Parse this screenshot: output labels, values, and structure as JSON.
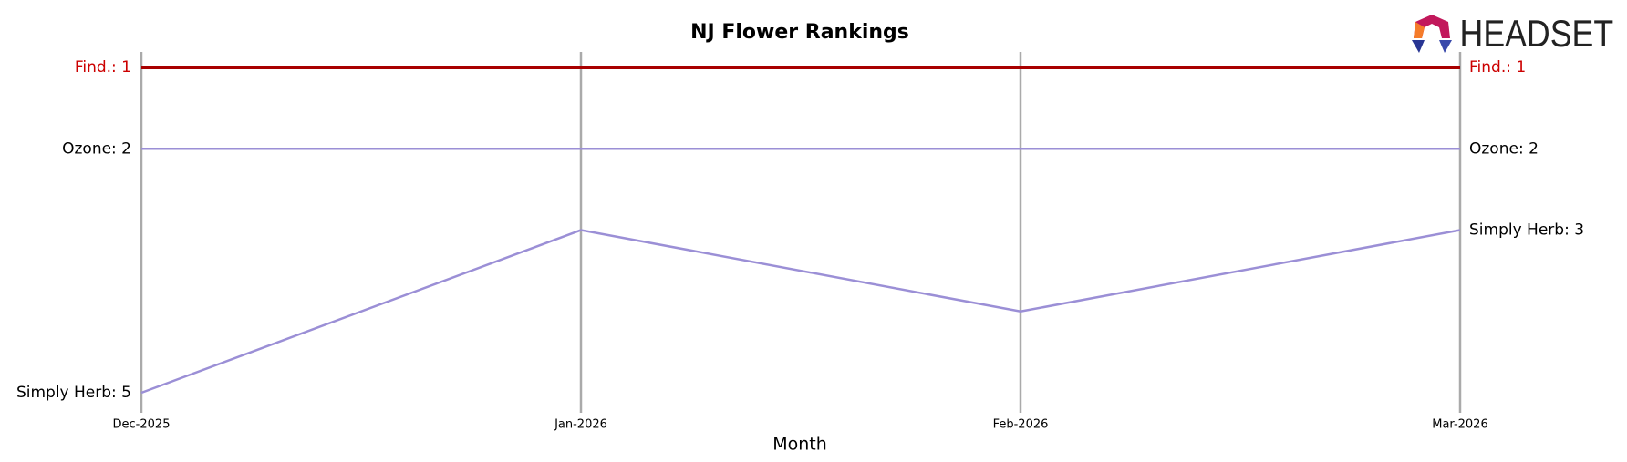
{
  "chart_data": {
    "type": "line",
    "title": "NJ Flower Rankings",
    "logo": "HEADSET",
    "x_label": "Month",
    "categories": [
      "Dec-2025",
      "Jan-2026",
      "Feb-2026",
      "Mar-2026"
    ],
    "ylim": [
      1,
      5
    ],
    "y_inverted": true,
    "series": [
      {
        "name": "Find.",
        "color": "#a80000",
        "label_color": "#cc0000",
        "values": [
          1,
          1,
          1,
          1
        ],
        "value_labels": [
          "Find.: 1",
          null,
          null,
          "Find.: 1"
        ]
      },
      {
        "name": "Ozone",
        "color": "#9b8fd6",
        "label_color": "#000000",
        "values": [
          2,
          2,
          2,
          2
        ],
        "value_labels": [
          "Ozone: 2",
          null,
          null,
          "Ozone: 2"
        ]
      },
      {
        "name": "Simply Herb",
        "color": "#9b8fd6",
        "label_color": "#000000",
        "values": [
          5,
          3,
          4,
          3
        ],
        "value_labels": [
          "Simply Herb: 5",
          null,
          null,
          "Simply Herb: 3"
        ]
      }
    ]
  }
}
